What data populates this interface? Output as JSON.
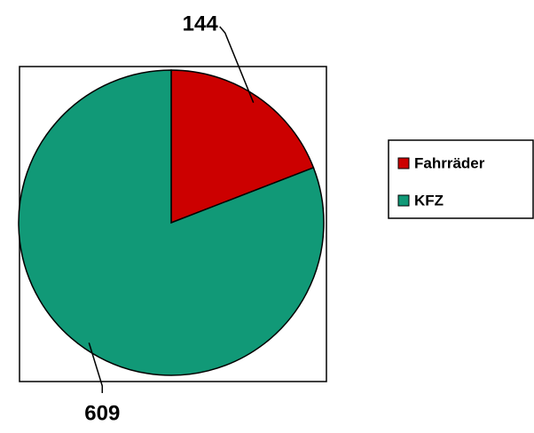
{
  "chart_data": {
    "type": "pie",
    "categories": [
      "Fahrräder",
      "KFZ"
    ],
    "values": [
      144,
      609
    ],
    "colors": [
      "#cc0000",
      "#119977"
    ],
    "legend": "right"
  }
}
